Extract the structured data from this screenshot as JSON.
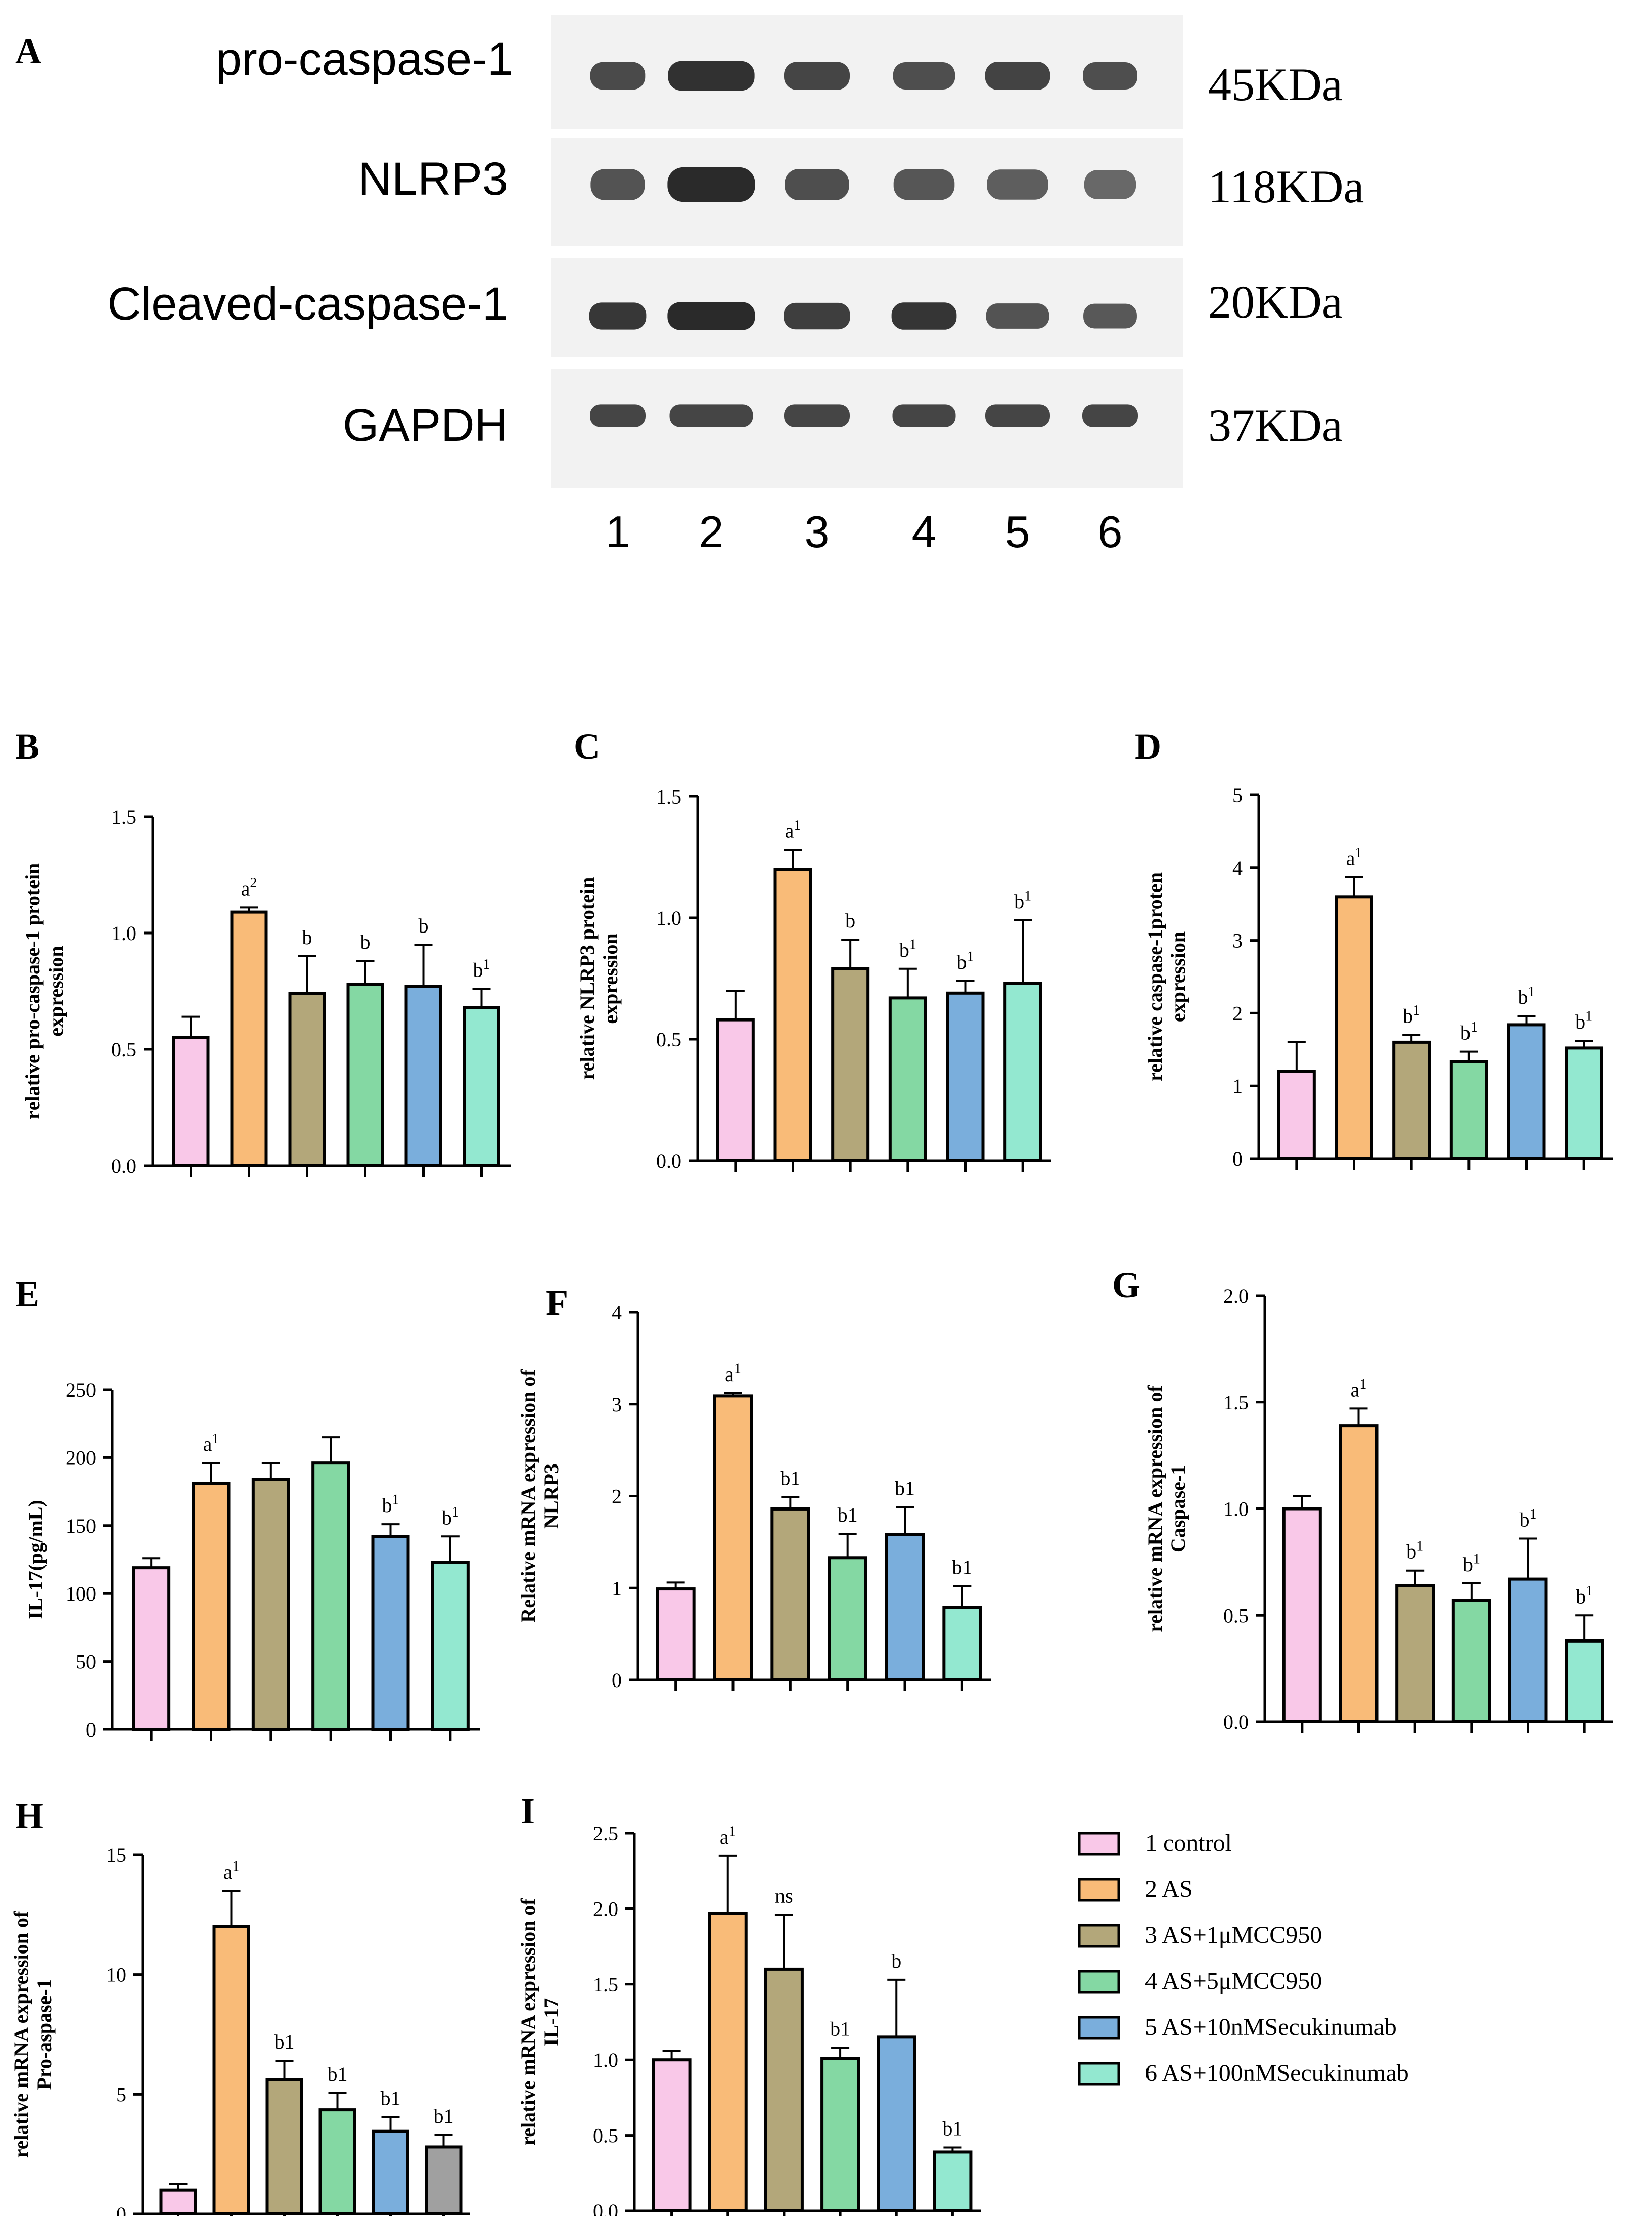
{
  "figure": {
    "panel_labels": [
      "A",
      "B",
      "C",
      "D",
      "E",
      "F",
      "G",
      "H",
      "I"
    ]
  },
  "colors": {
    "group1": "#f9c8e8",
    "group2": "#f9bb78",
    "group3": "#b3a77a",
    "group4": "#84d8a3",
    "group5": "#7aaedc",
    "group6": "#93e8d0",
    "group6_alt": "#a0a0a0",
    "blot_bg": "#f2f2f2",
    "band": "#2a2a2a"
  },
  "blot": {
    "rows": [
      {
        "protein": "pro-caspase-1",
        "size": "45KDa",
        "intensity": [
          0.75,
          0.95,
          0.8,
          0.72,
          0.82,
          0.72
        ]
      },
      {
        "protein": "NLRP3",
        "size": "118KDa",
        "intensity": [
          0.7,
          1.0,
          0.72,
          0.66,
          0.6,
          0.52
        ]
      },
      {
        "protein": "Cleaved-caspase-1",
        "size": "20KDa",
        "intensity": [
          0.9,
          1.0,
          0.85,
          0.92,
          0.7,
          0.65
        ]
      },
      {
        "protein": "GAPDH",
        "size": "37KDa",
        "intensity": [
          0.8,
          0.8,
          0.8,
          0.8,
          0.8,
          0.8
        ]
      }
    ],
    "lanes": [
      "1",
      "2",
      "3",
      "4",
      "5",
      "6"
    ]
  },
  "legend": [
    {
      "label": "1 control",
      "color_key": "group1"
    },
    {
      "label": "2 AS",
      "color_key": "group2"
    },
    {
      "label": "3 AS+1μMCC950",
      "color_key": "group3"
    },
    {
      "label": "4 AS+5μMCC950",
      "color_key": "group4"
    },
    {
      "label": "5 AS+10nMSecukinumab",
      "color_key": "group5"
    },
    {
      "label": "6 AS+100nMSecukinumab",
      "color_key": "group6"
    }
  ],
  "chart_data": [
    {
      "id": "B",
      "type": "bar",
      "ylabel": [
        "relative pro-caspase-1 protein",
        "expression"
      ],
      "ylim": [
        0,
        1.5
      ],
      "ticks": [
        "0.0",
        "0.5",
        "1.0",
        "1.5"
      ],
      "categories": [
        "1",
        "2",
        "3",
        "4",
        "5",
        "6"
      ],
      "values": [
        0.55,
        1.09,
        0.74,
        0.78,
        0.77,
        0.68
      ],
      "errors": [
        0.09,
        0.02,
        0.16,
        0.1,
        0.18,
        0.08
      ],
      "annotations": [
        {
          "base": "",
          "sup": ""
        },
        {
          "base": "a",
          "sup": "2"
        },
        {
          "base": "b",
          "sup": ""
        },
        {
          "base": "b",
          "sup": ""
        },
        {
          "base": "b",
          "sup": ""
        },
        {
          "base": "b",
          "sup": "1"
        }
      ]
    },
    {
      "id": "C",
      "type": "bar",
      "ylabel": [
        "relative NLRP3 protein",
        "expression"
      ],
      "ylim": [
        0,
        1.5
      ],
      "ticks": [
        "0.0",
        "0.5",
        "1.0",
        "1.5"
      ],
      "categories": [
        "1",
        "2",
        "3",
        "4",
        "5",
        "6"
      ],
      "values": [
        0.58,
        1.2,
        0.79,
        0.67,
        0.69,
        0.73
      ],
      "errors": [
        0.12,
        0.08,
        0.12,
        0.12,
        0.05,
        0.26
      ],
      "annotations": [
        {
          "base": "",
          "sup": ""
        },
        {
          "base": "a",
          "sup": "1"
        },
        {
          "base": "b",
          "sup": ""
        },
        {
          "base": "b",
          "sup": "1"
        },
        {
          "base": "b",
          "sup": "1"
        },
        {
          "base": "b",
          "sup": "1"
        }
      ]
    },
    {
      "id": "D",
      "type": "bar",
      "ylabel": [
        "relative caspase-1proten",
        "expression"
      ],
      "ylim": [
        0,
        5
      ],
      "ticks": [
        "0",
        "1",
        "2",
        "3",
        "4",
        "5"
      ],
      "categories": [
        "1",
        "2",
        "3",
        "4",
        "5",
        "6"
      ],
      "values": [
        1.2,
        3.6,
        1.6,
        1.33,
        1.84,
        1.52
      ],
      "errors": [
        0.4,
        0.27,
        0.1,
        0.14,
        0.12,
        0.1
      ],
      "annotations": [
        {
          "base": "",
          "sup": ""
        },
        {
          "base": "a",
          "sup": "1"
        },
        {
          "base": "b",
          "sup": "1"
        },
        {
          "base": "b",
          "sup": "1"
        },
        {
          "base": "b",
          "sup": "1"
        },
        {
          "base": "b",
          "sup": "1"
        }
      ]
    },
    {
      "id": "E",
      "type": "bar",
      "ylabel": [
        "IL-17(pg/mL)"
      ],
      "ylim": [
        0,
        250
      ],
      "ticks": [
        "0",
        "50",
        "100",
        "150",
        "200",
        "250"
      ],
      "categories": [
        "1",
        "2",
        "3",
        "4",
        "5",
        "6"
      ],
      "values": [
        119,
        181,
        184,
        196,
        142,
        123
      ],
      "errors": [
        7,
        15,
        12,
        19,
        9,
        19
      ],
      "annotations": [
        {
          "base": "",
          "sup": ""
        },
        {
          "base": "a",
          "sup": "1"
        },
        {
          "base": "",
          "sup": ""
        },
        {
          "base": "",
          "sup": ""
        },
        {
          "base": "b",
          "sup": "1"
        },
        {
          "base": "b",
          "sup": "1"
        }
      ]
    },
    {
      "id": "F",
      "type": "bar",
      "ylabel": [
        "Relative mRNA expression of",
        "NLRP3"
      ],
      "ylim": [
        0,
        4
      ],
      "ticks": [
        "0",
        "1",
        "2",
        "3",
        "4"
      ],
      "categories": [
        "1",
        "2",
        "3",
        "4",
        "5",
        "6"
      ],
      "values": [
        0.99,
        3.09,
        1.86,
        1.33,
        1.58,
        0.79
      ],
      "errors": [
        0.07,
        0.03,
        0.13,
        0.26,
        0.3,
        0.23
      ],
      "annotations": [
        {
          "base": "",
          "sup": ""
        },
        {
          "base": "a",
          "sup": "1"
        },
        {
          "base": "b1",
          "sup": ""
        },
        {
          "base": "b1",
          "sup": ""
        },
        {
          "base": "b1",
          "sup": ""
        },
        {
          "base": "b1",
          "sup": ""
        }
      ]
    },
    {
      "id": "G",
      "type": "bar",
      "ylabel": [
        "relative mRNA expression of",
        "Caspase-1"
      ],
      "ylim": [
        0,
        2.0
      ],
      "ticks": [
        "0.0",
        "0.5",
        "1.0",
        "1.5",
        "2.0"
      ],
      "categories": [
        "1",
        "2",
        "3",
        "4",
        "5",
        "6"
      ],
      "values": [
        1.0,
        1.39,
        0.64,
        0.57,
        0.67,
        0.38
      ],
      "errors": [
        0.06,
        0.08,
        0.07,
        0.08,
        0.19,
        0.12
      ],
      "annotations": [
        {
          "base": "",
          "sup": ""
        },
        {
          "base": "a",
          "sup": "1"
        },
        {
          "base": "b",
          "sup": "1"
        },
        {
          "base": "b",
          "sup": "1"
        },
        {
          "base": "b",
          "sup": "1"
        },
        {
          "base": "b",
          "sup": "1"
        }
      ]
    },
    {
      "id": "H",
      "type": "bar",
      "ylabel": [
        "relative mRNA expression of",
        "Pro-aspase-1"
      ],
      "ylim": [
        0,
        15
      ],
      "ticks": [
        "0",
        "5",
        "10",
        "15"
      ],
      "categories": [
        "1",
        "2",
        "3",
        "4",
        "5",
        "6"
      ],
      "values": [
        1.0,
        12.0,
        5.6,
        4.35,
        3.45,
        2.8
      ],
      "errors": [
        0.25,
        1.5,
        0.8,
        0.7,
        0.6,
        0.5
      ],
      "annotations": [
        {
          "base": "",
          "sup": ""
        },
        {
          "base": "a",
          "sup": "1"
        },
        {
          "base": "b1",
          "sup": ""
        },
        {
          "base": "b1",
          "sup": ""
        },
        {
          "base": "b1",
          "sup": ""
        },
        {
          "base": "b1",
          "sup": ""
        }
      ],
      "last_bar_gray": true
    },
    {
      "id": "I",
      "type": "bar",
      "ylabel": [
        "relative mRNA expression of",
        "IL-17"
      ],
      "ylim": [
        0,
        2.5
      ],
      "ticks": [
        "0.0",
        "0.5",
        "1.0",
        "1.5",
        "2.0",
        "2.5"
      ],
      "categories": [
        "1",
        "2",
        "3",
        "4",
        "5",
        "6"
      ],
      "values": [
        1.0,
        1.97,
        1.6,
        1.01,
        1.15,
        0.39
      ],
      "errors": [
        0.06,
        0.38,
        0.36,
        0.07,
        0.38,
        0.03
      ],
      "annotations": [
        {
          "base": "",
          "sup": ""
        },
        {
          "base": "a",
          "sup": "1"
        },
        {
          "base": "ns",
          "sup": ""
        },
        {
          "base": "b1",
          "sup": ""
        },
        {
          "base": "b",
          "sup": ""
        },
        {
          "base": "b1",
          "sup": ""
        }
      ]
    }
  ]
}
